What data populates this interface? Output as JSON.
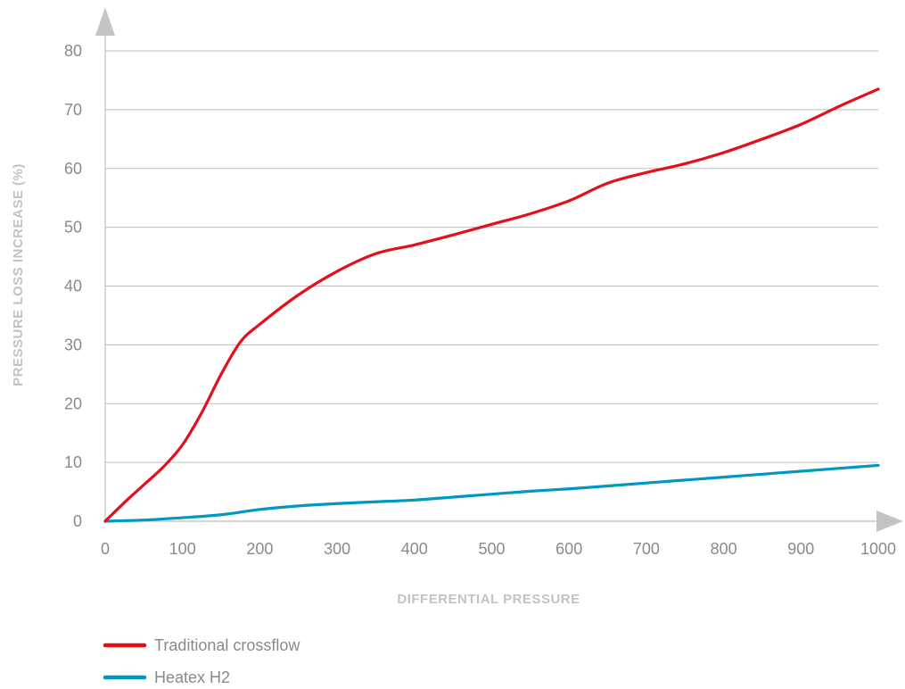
{
  "chart_data": {
    "type": "line",
    "title": "",
    "xlabel": "DIFFERENTIAL PRESSURE",
    "ylabel": "PRESSURE LOSS INCREASE (%)",
    "xlim": [
      0,
      1000
    ],
    "ylim": [
      0,
      80
    ],
    "x_ticks": [
      0,
      100,
      200,
      300,
      400,
      500,
      600,
      700,
      800,
      900,
      1000
    ],
    "y_ticks": [
      0,
      10,
      20,
      30,
      40,
      50,
      60,
      70,
      80
    ],
    "grid": "horizontal",
    "legend_position": "bottom-left",
    "series": [
      {
        "name": "Traditional crossflow",
        "color": "#e3101c",
        "x": [
          0,
          25,
          50,
          75,
          100,
          125,
          150,
          175,
          200,
          250,
          300,
          350,
          400,
          450,
          500,
          550,
          600,
          650,
          700,
          750,
          800,
          850,
          900,
          950,
          1000
        ],
        "y": [
          0,
          3.2,
          6.2,
          9.2,
          13,
          18.5,
          25,
          30.5,
          33.5,
          38.5,
          42.5,
          45.5,
          47,
          48.7,
          50.5,
          52.3,
          54.5,
          57.5,
          59.3,
          60.8,
          62.7,
          65,
          67.5,
          70.6,
          73.5
        ]
      },
      {
        "name": "Heatex H2",
        "color": "#0097c2",
        "x": [
          0,
          50,
          100,
          150,
          200,
          250,
          300,
          350,
          400,
          450,
          500,
          550,
          600,
          650,
          700,
          750,
          800,
          850,
          900,
          950,
          1000
        ],
        "y": [
          0,
          0.2,
          0.6,
          1.1,
          2.0,
          2.6,
          3.0,
          3.3,
          3.6,
          4.1,
          4.6,
          5.1,
          5.5,
          6.0,
          6.5,
          7.0,
          7.5,
          8.0,
          8.5,
          9.0,
          9.5
        ]
      }
    ]
  }
}
